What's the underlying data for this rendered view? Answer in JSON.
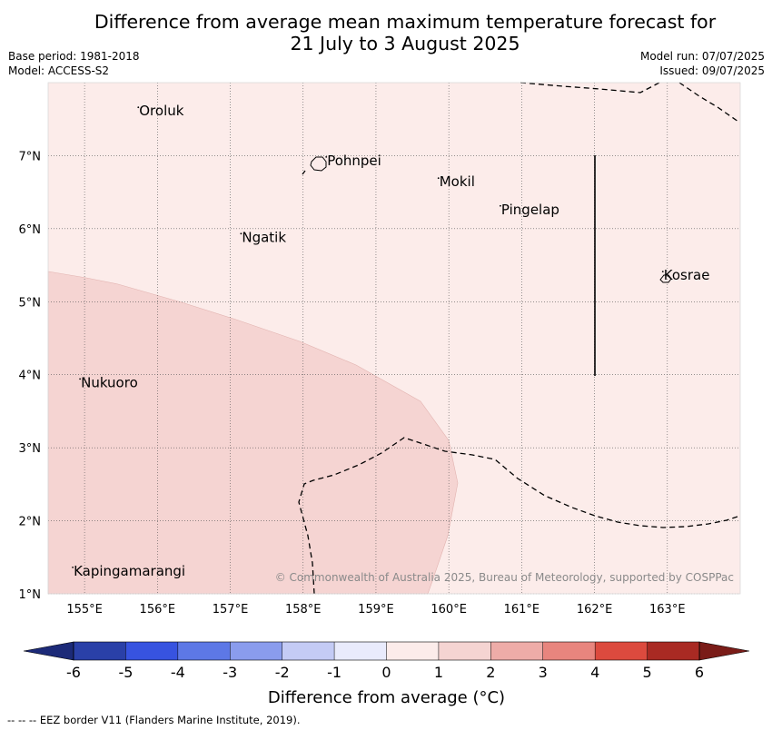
{
  "title": {
    "line1": "Difference from average mean maximum temperature forecast for",
    "line2": "21 July to 3 August 2025"
  },
  "meta_left": {
    "base_period": "Base period: 1981-2018",
    "model": "Model: ACCESS-S2"
  },
  "meta_right": {
    "model_run": "Model run: 07/07/2025",
    "issued": "Issued: 09/07/2025"
  },
  "map": {
    "lon_range": [
      154.5,
      164.0
    ],
    "lat_range": [
      1.0,
      8.0
    ],
    "lon_ticks": [
      155,
      156,
      157,
      158,
      159,
      160,
      161,
      162,
      163
    ],
    "lon_tick_labels": [
      "155°E",
      "156°E",
      "157°E",
      "158°E",
      "159°E",
      "160°E",
      "161°E",
      "162°E",
      "163°E"
    ],
    "lat_ticks": [
      1,
      2,
      3,
      4,
      5,
      6,
      7
    ],
    "lat_tick_labels": [
      "1°N",
      "2°N",
      "3°N",
      "4°N",
      "5°N",
      "6°N",
      "7°N"
    ],
    "background_category": "0 to 1 °C",
    "shaded_region_category": "1 to 2 °C",
    "places": [
      {
        "name": "Oroluk",
        "lon": 155.75,
        "lat": 7.55
      },
      {
        "name": "Pohnpei",
        "lon": 158.33,
        "lat": 6.87
      },
      {
        "name": "Mokil",
        "lon": 159.87,
        "lat": 6.58
      },
      {
        "name": "Pingelap",
        "lon": 160.72,
        "lat": 6.2
      },
      {
        "name": "Ngatik",
        "lon": 157.16,
        "lat": 5.82
      },
      {
        "name": "Kosrae",
        "lon": 162.95,
        "lat": 5.3
      },
      {
        "name": "Nukuoro",
        "lon": 154.95,
        "lat": 3.83
      },
      {
        "name": "Kapingamarangi",
        "lon": 154.85,
        "lat": 1.25
      }
    ],
    "copyright": "© Commonwealth of Australia 2025, Bureau of Meteorology, supported by COSPPac"
  },
  "colorbar": {
    "boundaries": [
      -6,
      -5,
      -4,
      -3,
      -2,
      -1,
      0,
      1,
      2,
      3,
      4,
      5,
      6
    ],
    "tick_labels": [
      "-6",
      "-5",
      "-4",
      "-3",
      "-2",
      "-1",
      "0",
      "1",
      "2",
      "3",
      "4",
      "5",
      "6"
    ],
    "colors": [
      "#2a40a8",
      "#3753e0",
      "#5d78e6",
      "#8a9ced",
      "#c4cbf5",
      "#e9ebfc",
      "#fcecea",
      "#f5d4d2",
      "#eeaca8",
      "#e8857e",
      "#dc4a3e",
      "#a92a23"
    ],
    "under_color": "#1c2a78",
    "over_color": "#7a1c18",
    "label": "Difference from average (°C)"
  },
  "footer": "--  --  -- EEZ border V11 (Flanders Marine Institute, 2019)."
}
